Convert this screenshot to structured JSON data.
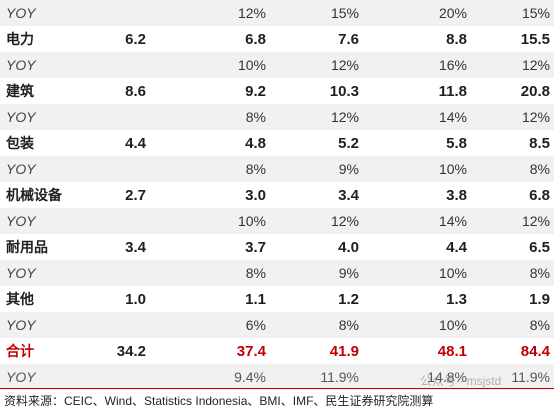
{
  "table": {
    "rows": [
      {
        "kind": "yoy",
        "cells": [
          "YOY",
          "",
          "12%",
          "15%",
          "20%",
          "15%"
        ]
      },
      {
        "kind": "metric",
        "cells": [
          "电力",
          "6.2",
          "6.8",
          "7.6",
          "8.8",
          "15.5"
        ]
      },
      {
        "kind": "yoy",
        "cells": [
          "YOY",
          "",
          "10%",
          "12%",
          "16%",
          "12%"
        ]
      },
      {
        "kind": "metric",
        "cells": [
          "建筑",
          "8.6",
          "9.2",
          "10.3",
          "11.8",
          "20.8"
        ]
      },
      {
        "kind": "yoy",
        "cells": [
          "YOY",
          "",
          "8%",
          "12%",
          "14%",
          "12%"
        ]
      },
      {
        "kind": "metric",
        "cells": [
          "包装",
          "4.4",
          "4.8",
          "5.2",
          "5.8",
          "8.5"
        ]
      },
      {
        "kind": "yoy",
        "cells": [
          "YOY",
          "",
          "8%",
          "9%",
          "10%",
          "8%"
        ]
      },
      {
        "kind": "metric",
        "cells": [
          "机械设备",
          "2.7",
          "3.0",
          "3.4",
          "3.8",
          "6.8"
        ]
      },
      {
        "kind": "yoy",
        "cells": [
          "YOY",
          "",
          "10%",
          "12%",
          "14%",
          "12%"
        ]
      },
      {
        "kind": "metric",
        "cells": [
          "耐用品",
          "3.4",
          "3.7",
          "4.0",
          "4.4",
          "6.5"
        ]
      },
      {
        "kind": "yoy",
        "cells": [
          "YOY",
          "",
          "8%",
          "9%",
          "10%",
          "8%"
        ]
      },
      {
        "kind": "metric",
        "cells": [
          "其他",
          "1.0",
          "1.1",
          "1.2",
          "1.3",
          "1.9"
        ]
      },
      {
        "kind": "yoy",
        "cells": [
          "YOY",
          "",
          "6%",
          "8%",
          "10%",
          "8%"
        ]
      },
      {
        "kind": "total",
        "cells": [
          "合计",
          "34.2",
          "37.4",
          "41.9",
          "48.1",
          "84.4"
        ]
      },
      {
        "kind": "total-yoy",
        "cells": [
          "YOY",
          "",
          "9.4%",
          "11.9%",
          "14.8%",
          "11.9%"
        ]
      }
    ]
  },
  "footnote": "资料来源：CEIC、Wind、Statistics Indonesia、BMI、IMF、民生证券研究院测算",
  "watermark": "公众号 · msjstd"
}
